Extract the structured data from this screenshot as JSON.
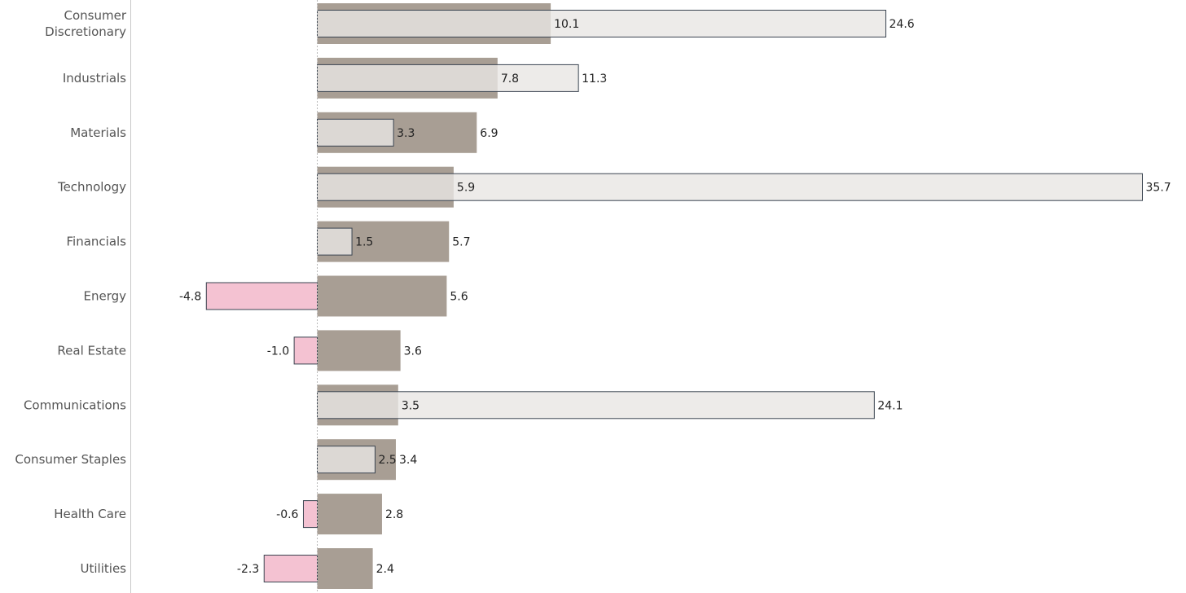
{
  "chart_data": {
    "type": "bar",
    "orientation": "horizontal",
    "categories": [
      [
        "Consumer",
        "Discretionary"
      ],
      [
        "Industrials"
      ],
      [
        "Materials"
      ],
      [
        "Technology"
      ],
      [
        "Financials"
      ],
      [
        "Energy"
      ],
      [
        "Real Estate"
      ],
      [
        "Communications"
      ],
      [
        "Consumer Staples"
      ],
      [
        "Health Care"
      ],
      [
        "Utilities"
      ]
    ],
    "series": [
      {
        "values": [
          10.1,
          7.8,
          6.9,
          5.9,
          5.7,
          5.6,
          3.6,
          3.5,
          3.4,
          2.8,
          2.4
        ],
        "labels": [
          "",
          "",
          "6.9",
          "",
          "5.7",
          "5.6",
          "3.6",
          "",
          "3.4",
          "2.8",
          "2.4"
        ],
        "color": "#a89e94"
      },
      {
        "values": [
          24.6,
          11.3,
          3.3,
          35.7,
          1.5,
          -4.8,
          -1.0,
          24.1,
          2.5,
          -0.6,
          -2.3
        ],
        "labels": [
          "24.6",
          "11.3",
          "3.3",
          "35.7",
          "1.5",
          "-4.8",
          "-1.0",
          "24.1",
          "2.5",
          "-0.6",
          "-2.3"
        ],
        "color": "#e8e6e3",
        "negative_color": "#f4c2d2",
        "outline_color": "#3a4450"
      }
    ],
    "series_1_label_inside": [
      "10.1",
      "7.8",
      "",
      "5.9",
      "",
      "",
      "",
      "3.5",
      "",
      "",
      ""
    ],
    "xlim": [
      -8.15,
      35.7
    ],
    "zero_line": true,
    "grid": false,
    "legend": "none"
  }
}
